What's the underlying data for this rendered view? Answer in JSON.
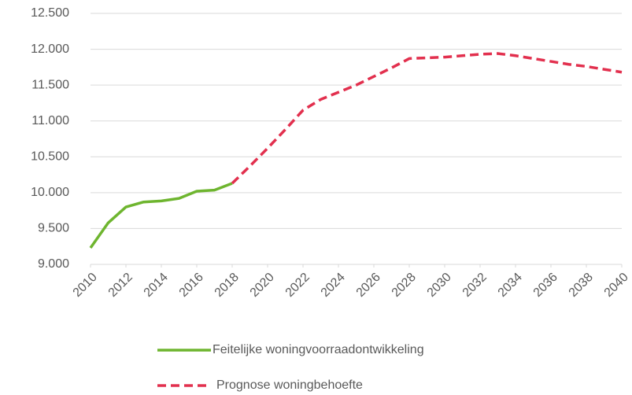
{
  "chart_data": {
    "type": "line",
    "x": [
      2010,
      2011,
      2012,
      2013,
      2014,
      2015,
      2016,
      2017,
      2018,
      2019,
      2020,
      2021,
      2022,
      2023,
      2024,
      2025,
      2026,
      2027,
      2028,
      2029,
      2030,
      2031,
      2032,
      2033,
      2034,
      2035,
      2036,
      2037,
      2038,
      2039,
      2040
    ],
    "series": [
      {
        "name": "Feitelijke woningvoorraadontwikkeling",
        "color": "#6eb52f",
        "dashed": false,
        "values": [
          9230,
          9580,
          9800,
          9870,
          9885,
          9920,
          10020,
          10035,
          10130,
          null,
          null,
          null,
          null,
          null,
          null,
          null,
          null,
          null,
          null,
          null,
          null,
          null,
          null,
          null,
          null,
          null,
          null,
          null,
          null,
          null,
          null
        ]
      },
      {
        "name": "Prognose woningbehoefte",
        "color": "#e2304e",
        "dashed": true,
        "values": [
          null,
          null,
          null,
          null,
          null,
          null,
          null,
          null,
          10130,
          10370,
          10620,
          10880,
          11150,
          11300,
          11400,
          11500,
          11620,
          11740,
          11870,
          11880,
          11890,
          11910,
          11930,
          11940,
          11910,
          11870,
          11830,
          11790,
          11760,
          11720,
          11680
        ]
      }
    ],
    "xlim": [
      2010,
      2040
    ],
    "xticks": [
      2010,
      2012,
      2014,
      2016,
      2018,
      2020,
      2022,
      2024,
      2026,
      2028,
      2030,
      2032,
      2034,
      2036,
      2038,
      2040
    ],
    "ylim": [
      9000,
      12500
    ],
    "yticks": [
      {
        "value": 9000,
        "label": "9.000"
      },
      {
        "value": 9500,
        "label": "9.500"
      },
      {
        "value": 10000,
        "label": "10.000"
      },
      {
        "value": 10500,
        "label": "10.500"
      },
      {
        "value": 11000,
        "label": "11.000"
      },
      {
        "value": 11500,
        "label": "11.500"
      },
      {
        "value": 12000,
        "label": "12.000"
      },
      {
        "value": 12500,
        "label": "12.500"
      }
    ],
    "grid": true
  }
}
